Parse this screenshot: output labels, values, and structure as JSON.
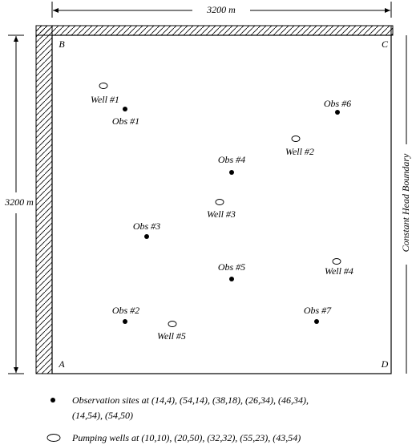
{
  "dimensions": {
    "top": "3200 m",
    "left": "3200 m"
  },
  "boundary_label": "Constant Head Boundary",
  "corners": {
    "a": "A",
    "b": "B",
    "c": "C",
    "d": "D"
  },
  "wells": [
    "Well #1",
    "Well #2",
    "Well #3",
    "Well #4",
    "Well #5"
  ],
  "observations": [
    "Obs #1",
    "Obs #2",
    "Obs #3",
    "Obs #4",
    "Obs #5",
    "Obs #6",
    "Obs #7"
  ],
  "legend": {
    "observation_lines": [
      "Observation sites at (14,4), (54,14), (38,18), (26,34), (46,34),",
      "(14,54), (54,50)"
    ],
    "pumping": "Pumping wells at (10,10), (20,50), (32,32), (55,23), (43,54)"
  }
}
